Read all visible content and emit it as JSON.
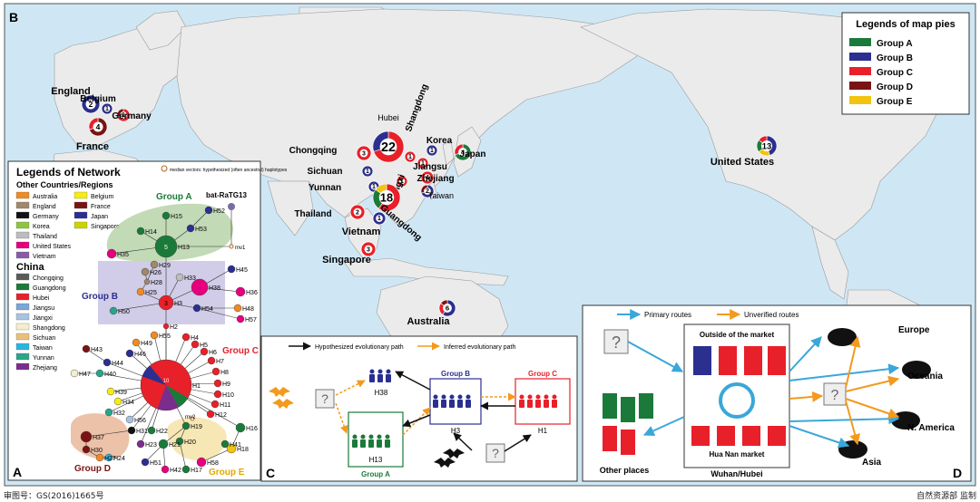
{
  "panels": {
    "A": "A",
    "B": "B",
    "C": "C",
    "D": "D"
  },
  "map_legend": {
    "title": "Legends of map pies",
    "items": [
      {
        "label": "Group A",
        "color": "#1b7a3a"
      },
      {
        "label": "Group B",
        "color": "#2b2f8f"
      },
      {
        "label": "Group C",
        "color": "#e8202a"
      },
      {
        "label": "Group D",
        "color": "#7a1414"
      },
      {
        "label": "Group E",
        "color": "#f2c30f"
      }
    ]
  },
  "map_pies": [
    {
      "place": "England",
      "n": "2",
      "groups": [
        "B"
      ]
    },
    {
      "place": "Belgium",
      "n": "1",
      "groups": [
        "B"
      ]
    },
    {
      "place": "Germany",
      "n": "1",
      "groups": [
        "C",
        "D"
      ]
    },
    {
      "place": "France",
      "n": "4",
      "groups": [
        "D",
        "C"
      ]
    },
    {
      "place": "Hubei",
      "n": "22",
      "groups": [
        "C",
        "B"
      ]
    },
    {
      "place": "Shangdong",
      "n": "1",
      "groups": [
        "C"
      ]
    },
    {
      "place": "Korea",
      "n": "1",
      "groups": [
        "B"
      ]
    },
    {
      "place": "Japan",
      "n": "4",
      "groups": [
        "A",
        "C"
      ]
    },
    {
      "place": "Jiangsu",
      "n": "1",
      "groups": [
        "C"
      ]
    },
    {
      "place": "Zhejiang",
      "n": "4",
      "groups": [
        "C"
      ]
    },
    {
      "place": "Taiwan",
      "n": "2",
      "groups": [
        "B",
        "D"
      ]
    },
    {
      "place": "Jiangxi",
      "n": "1",
      "groups": [
        "C"
      ]
    },
    {
      "place": "Chongqing",
      "n": "3",
      "groups": [
        "C"
      ]
    },
    {
      "place": "Sichuan",
      "n": "1",
      "groups": [
        "B"
      ]
    },
    {
      "place": "Yunnan",
      "n": "1",
      "groups": [
        "B"
      ]
    },
    {
      "place": "Guangdong",
      "n": "18",
      "groups": [
        "C",
        "A",
        "E"
      ]
    },
    {
      "place": "Thailand",
      "n": "2",
      "groups": [
        "C"
      ]
    },
    {
      "place": "Vietnam",
      "n": "1",
      "groups": [
        "B"
      ]
    },
    {
      "place": "Singapore",
      "n": "3",
      "groups": [
        "C"
      ]
    },
    {
      "place": "Australia",
      "n": "6",
      "groups": [
        "B",
        "C",
        "D"
      ]
    },
    {
      "place": "United States",
      "n": "13",
      "groups": [
        "B",
        "E",
        "A",
        "C"
      ]
    }
  ],
  "network_legend": {
    "title": "Legends of Network",
    "other_title": "Other Countries/Regions",
    "median_note": "median vectors: hypothesized (often ancestral) haplotypes",
    "col1": [
      {
        "label": "Australia",
        "color": "#f08a24"
      },
      {
        "label": "England",
        "color": "#a0886a"
      },
      {
        "label": "Germany",
        "color": "#111111"
      },
      {
        "label": "Korea",
        "color": "#8cc63f"
      },
      {
        "label": "Thailand",
        "color": "#bdbdbd"
      },
      {
        "label": "United States",
        "color": "#e6007e"
      },
      {
        "label": "Vietnam",
        "color": "#8a5aa8"
      }
    ],
    "col2": [
      {
        "label": "Belgium",
        "color": "#f7ec13"
      },
      {
        "label": "France",
        "color": "#7a1414"
      },
      {
        "label": "Japan",
        "color": "#2b2f8f"
      },
      {
        "label": "Singapore",
        "color": "#c9d400"
      }
    ],
    "china_title": "China",
    "china": [
      {
        "label": "Chongqing",
        "color": "#5a5a5a"
      },
      {
        "label": "Guangdong",
        "color": "#1b7a3a"
      },
      {
        "label": "Hubei",
        "color": "#e8202a"
      },
      {
        "label": "Jiangsu",
        "color": "#7aa6d8"
      },
      {
        "label": "Jiangxi",
        "color": "#a9c2e0"
      },
      {
        "label": "Shangdong",
        "color": "#f3eecb"
      },
      {
        "label": "Sichuan",
        "color": "#e8c07a"
      },
      {
        "label": "Taiwan",
        "color": "#2ab5e0"
      },
      {
        "label": "Yunnan",
        "color": "#2aa58a"
      },
      {
        "label": "Zhejiang",
        "color": "#7b2d8e"
      }
    ]
  },
  "network": {
    "groups": {
      "A": "Group A",
      "B": "Group B",
      "C": "Group C",
      "D": "Group D",
      "E": "Group E"
    },
    "bat": "bat-RaTG13",
    "mv": [
      "mv1",
      "mv2"
    ],
    "haplotypes": [
      "H1",
      "H2",
      "H3",
      "H4",
      "H5",
      "H6",
      "H7",
      "H8",
      "H9",
      "H10",
      "H11",
      "H12",
      "H13",
      "H14",
      "H15",
      "H16",
      "H17",
      "H18",
      "H19",
      "H20",
      "H21",
      "H22",
      "H23",
      "H24",
      "H25",
      "H26",
      "H27",
      "H28",
      "H29",
      "H30",
      "H31",
      "H32",
      "H33",
      "H34",
      "H35",
      "H36",
      "H37",
      "H38",
      "H39",
      "H40",
      "H41",
      "H42",
      "H43",
      "H44",
      "H45",
      "H46",
      "H47",
      "H48",
      "H49",
      "H50",
      "H51",
      "H52",
      "H53",
      "H54",
      "H55",
      "H56",
      "H57",
      "H58"
    ],
    "counts": {
      "H1": "10",
      "H13": "5",
      "H3": "3"
    }
  },
  "panel_c": {
    "legend1": "Hypothesized evolutionary path",
    "legend2": "Inferred evolutionary path",
    "group_b": "Group B",
    "group_c": "Group C",
    "group_a": "Group A",
    "h38": "H38",
    "h3": "H3",
    "h1": "H1",
    "h13": "H13",
    "q": "?"
  },
  "panel_d": {
    "legend1": "Primary routes",
    "legend2": "Unverified routes",
    "outside": "Outside of the market",
    "market": "Hua Nan market",
    "region": "Wuhan/Hubei",
    "other": "Other places",
    "dest": [
      "Europe",
      "Oceania",
      "N. America",
      "Asia"
    ],
    "q": "?"
  },
  "footer": {
    "left": "审图号：GS(2016)1665号",
    "right": "自然资源部 监制"
  },
  "colors": {
    "ocean": "#cfe7f5",
    "land": "#ebebeb",
    "border": "#999999"
  }
}
